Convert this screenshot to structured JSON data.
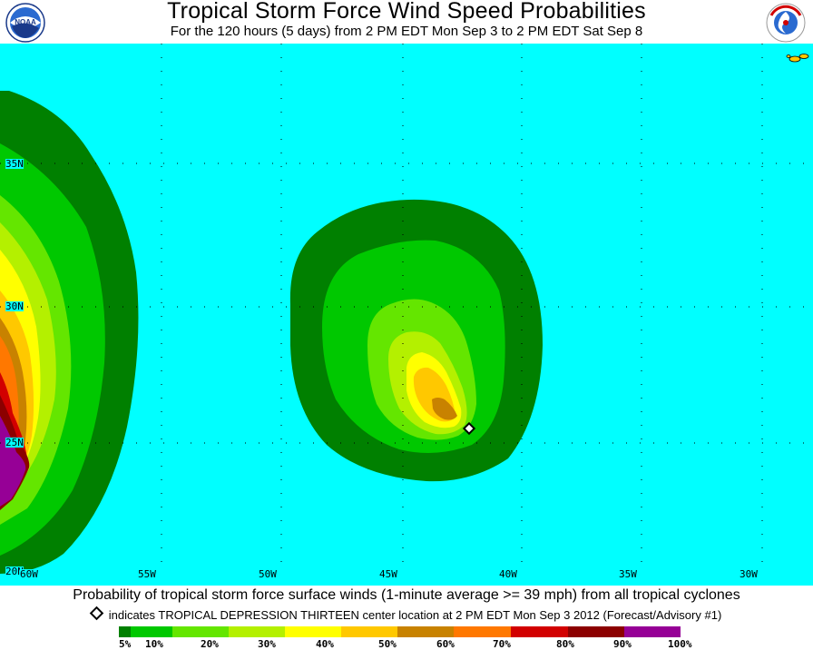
{
  "header": {
    "title": "Tropical Storm Force Wind Speed Probabilities",
    "subtitle": "For the 120 hours (5 days) from 2 PM EDT Mon Sep 3 to 2 PM EDT Sat Sep 8",
    "left_logo": "NOAA",
    "right_logo": "National Weather Service"
  },
  "map": {
    "latitude_labels": [
      "35N",
      "30N",
      "25N",
      "20N"
    ],
    "longitude_labels": [
      "60W",
      "55W",
      "50W",
      "45W",
      "40W",
      "35W",
      "30W"
    ],
    "background_color": "#00ffff",
    "center_location": {
      "lat": 25.6,
      "lon": -41.6
    }
  },
  "footer": {
    "caption": "Probability of tropical storm force surface winds (1-minute average >= 39 mph) from all tropical cyclones",
    "indicator_text": "indicates TROPICAL DEPRESSION THIRTEEN center location at 2 PM EDT Mon Sep 3 2012 (Forecast/Advisory #1)"
  },
  "legend": {
    "colors": [
      "#008000",
      "#00c800",
      "#64e600",
      "#b4f000",
      "#ffff00",
      "#ffc800",
      "#c88200",
      "#ff7800",
      "#d20000",
      "#8c0000",
      "#960096"
    ],
    "labels": [
      "5%",
      "10%",
      "20%",
      "30%",
      "40%",
      "50%",
      "60%",
      "70%",
      "80%",
      "90%",
      "100%"
    ]
  }
}
